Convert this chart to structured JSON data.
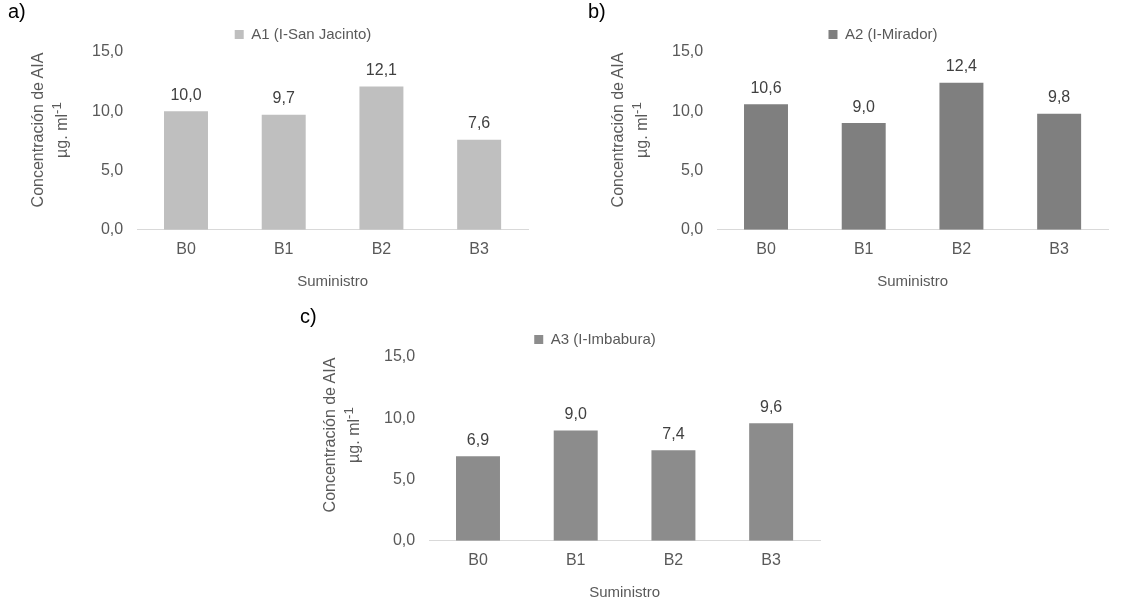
{
  "chart_data": [
    {
      "type": "bar",
      "title": "a)",
      "xlabel": "Suministro",
      "ylabel": "Concentración de AIA µg. ml$^{-1}$",
      "categories": [
        "B0",
        "B1",
        "B2",
        "B3"
      ],
      "series": [
        {
          "name": "A1 (I-San Jacinto)",
          "color": "#bfbfbf",
          "values": [
            10.0,
            9.7,
            12.1,
            7.6
          ],
          "value_labels": [
            "10,0",
            "9,7",
            "12,1",
            "7,6"
          ]
        }
      ],
      "ylim": [
        0,
        15
      ],
      "yticks": [
        {
          "value": 0,
          "label": "0,0"
        },
        {
          "value": 5,
          "label": "5,0"
        },
        {
          "value": 10,
          "label": "10,0"
        },
        {
          "value": 15,
          "label": "15,0"
        }
      ],
      "grid": false,
      "legend": "top"
    },
    {
      "type": "bar",
      "title": "b)",
      "xlabel": "Suministro",
      "ylabel": "Concentración de AIA µg. ml$^{-1}$",
      "categories": [
        "B0",
        "B1",
        "B2",
        "B3"
      ],
      "series": [
        {
          "name": "A2 (I-Mirador)",
          "color": "#7f7f7f",
          "values": [
            10.6,
            9.0,
            12.4,
            9.8
          ],
          "value_labels": [
            "10,6",
            "9,0",
            "12,4",
            "9,8"
          ]
        }
      ],
      "ylim": [
        0,
        15
      ],
      "yticks": [
        {
          "value": 0,
          "label": "0,0"
        },
        {
          "value": 5,
          "label": "5,0"
        },
        {
          "value": 10,
          "label": "10,0"
        },
        {
          "value": 15,
          "label": "15,0"
        }
      ],
      "grid": false,
      "legend": "top"
    },
    {
      "type": "bar",
      "title": "c)",
      "xlabel": "Suministro",
      "ylabel": "Concentración de AIA µg. ml$^{-1}$",
      "categories": [
        "B0",
        "B1",
        "B2",
        "B3"
      ],
      "series": [
        {
          "name": "A3 (I-Imbabura)",
          "color": "#8c8c8c",
          "values": [
            6.9,
            9.0,
            7.4,
            9.6
          ],
          "value_labels": [
            "6,9",
            "9,0",
            "7,4",
            "9,6"
          ]
        }
      ],
      "ylim": [
        0,
        15
      ],
      "yticks": [
        {
          "value": 0,
          "label": "0,0"
        },
        {
          "value": 5,
          "label": "5,0"
        },
        {
          "value": 10,
          "label": "10,0"
        },
        {
          "value": 15,
          "label": "15,0"
        }
      ],
      "grid": false,
      "legend": "top"
    }
  ]
}
